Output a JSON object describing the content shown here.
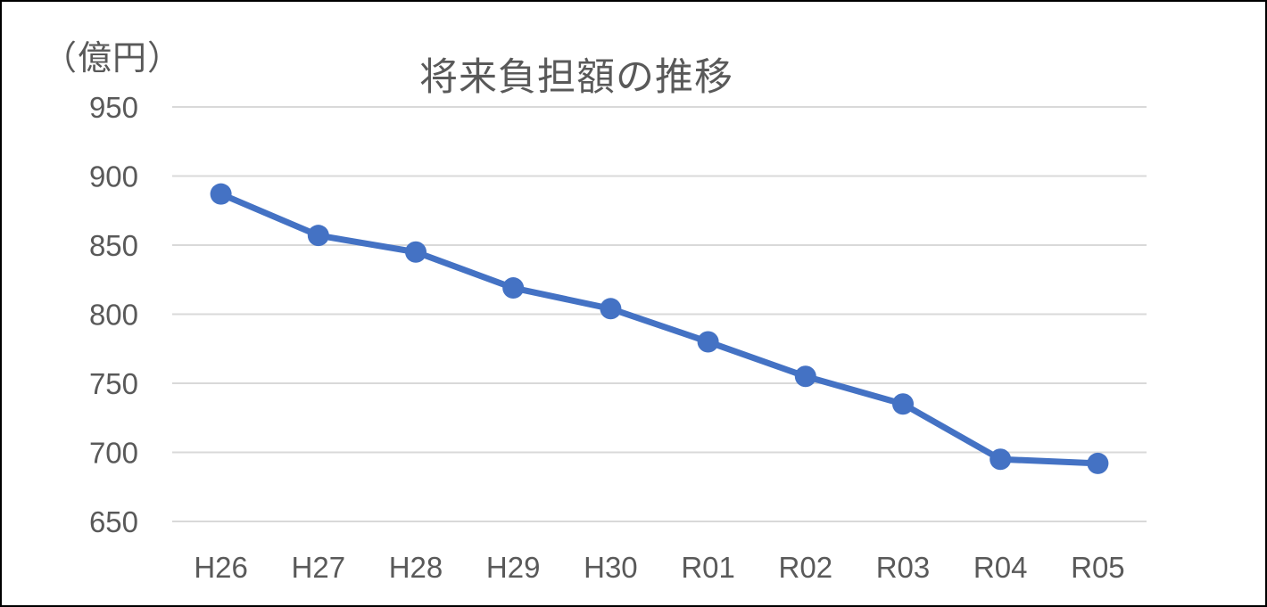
{
  "chart_data": {
    "type": "line",
    "title": "将来負担額の推移",
    "unit_label": "（億円）",
    "xlabel": "",
    "ylabel": "",
    "categories": [
      "H26",
      "H27",
      "H28",
      "H29",
      "H30",
      "R01",
      "R02",
      "R03",
      "R04",
      "R05"
    ],
    "series": [
      {
        "values": [
          887,
          857,
          845,
          819,
          804,
          780,
          755,
          735,
          695,
          692
        ],
        "color": "#4472C4"
      }
    ],
    "ylim": [
      650,
      950
    ],
    "yticks": [
      950,
      900,
      850,
      800,
      750,
      700,
      650
    ],
    "grid": true,
    "legend": "none"
  }
}
